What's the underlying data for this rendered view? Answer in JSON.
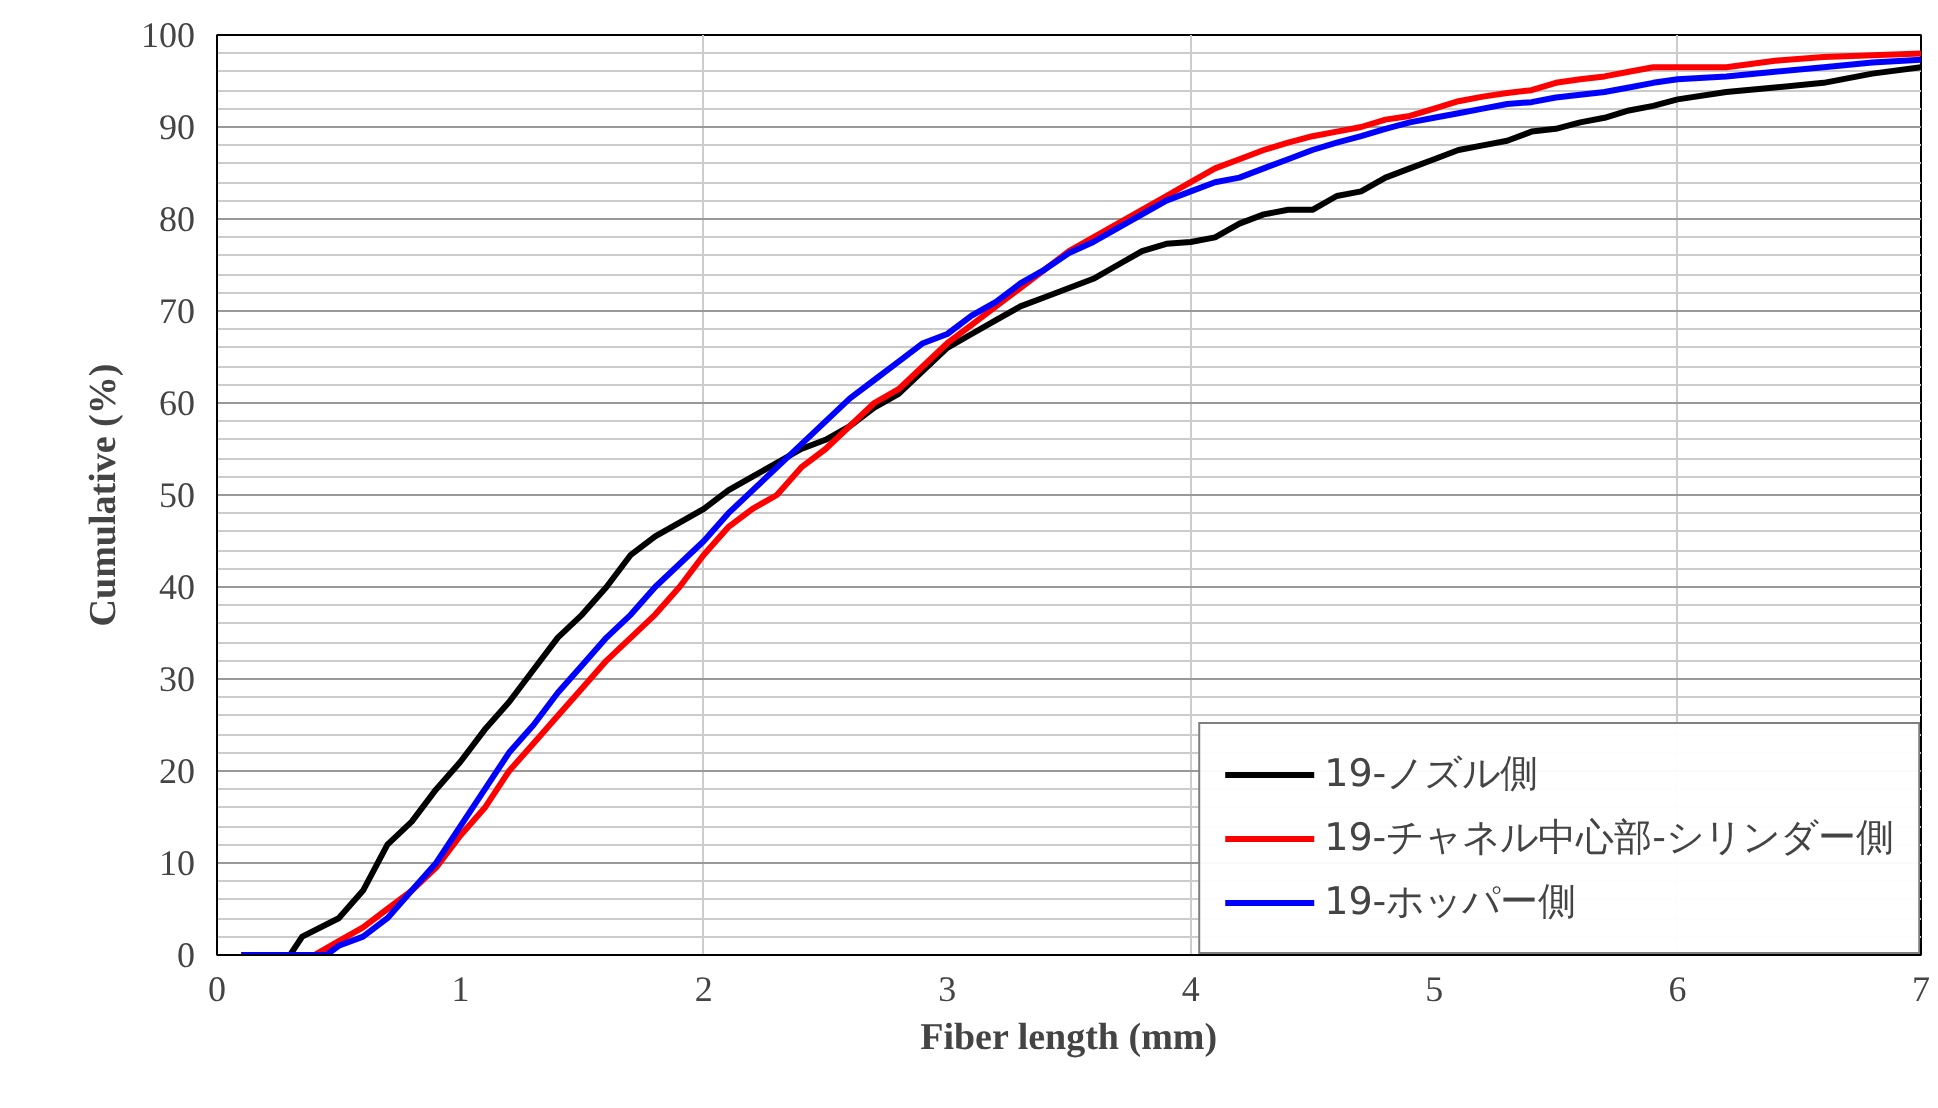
{
  "chart_data": {
    "type": "line",
    "xlabel": "Fiber length (mm)",
    "ylabel": "Cumulative (%)",
    "xlim": [
      0,
      7
    ],
    "ylim": [
      0,
      100
    ],
    "xticks": [
      0,
      1,
      2,
      3,
      4,
      5,
      6,
      7
    ],
    "yticks": [
      0,
      10,
      20,
      30,
      40,
      50,
      60,
      70,
      80,
      90,
      100
    ],
    "grid": true,
    "legend": "bottom right",
    "line_style": "solid",
    "series": [
      {
        "name": "19-ノズル側",
        "color": "#000000",
        "x": [
          0.1,
          0.3,
          0.35,
          0.5,
          0.6,
          0.7,
          0.8,
          0.9,
          1.0,
          1.1,
          1.2,
          1.3,
          1.4,
          1.5,
          1.6,
          1.7,
          1.8,
          1.9,
          2.0,
          2.1,
          2.2,
          2.3,
          2.4,
          2.5,
          2.6,
          2.7,
          2.8,
          2.9,
          3.0,
          3.1,
          3.2,
          3.3,
          3.4,
          3.5,
          3.6,
          3.7,
          3.8,
          3.9,
          4.0,
          4.1,
          4.2,
          4.3,
          4.4,
          4.5,
          4.6,
          4.7,
          4.8,
          4.9,
          5.0,
          5.1,
          5.2,
          5.3,
          5.4,
          5.5,
          5.6,
          5.7,
          5.8,
          5.9,
          6.0,
          6.2,
          6.4,
          6.6,
          6.8,
          7.0
        ],
        "values": [
          0,
          0,
          2,
          4,
          7,
          12,
          14.5,
          18,
          21,
          24.5,
          27.5,
          31,
          34.5,
          37,
          40,
          43.5,
          45.5,
          47,
          48.5,
          50.5,
          52,
          53.5,
          55,
          56,
          57.5,
          59.5,
          61,
          63.5,
          66,
          67.5,
          69,
          70.5,
          71.5,
          72.5,
          73.5,
          75,
          76.5,
          77.3,
          77.5,
          78,
          79.5,
          80.5,
          81,
          81,
          82.5,
          83,
          84.5,
          85.5,
          86.5,
          87.5,
          88,
          88.5,
          89.5,
          89.8,
          90.5,
          91,
          91.8,
          92.3,
          93,
          93.8,
          94.3,
          94.8,
          95.8,
          96.5
        ]
      },
      {
        "name": "19-チャネル中心部-シリンダー側",
        "color": "#ff0000",
        "x": [
          0.1,
          0.4,
          0.5,
          0.6,
          0.7,
          0.8,
          0.9,
          1.0,
          1.1,
          1.2,
          1.3,
          1.4,
          1.5,
          1.6,
          1.7,
          1.8,
          1.9,
          2.0,
          2.1,
          2.2,
          2.3,
          2.4,
          2.5,
          2.6,
          2.7,
          2.8,
          2.9,
          3.0,
          3.1,
          3.2,
          3.3,
          3.4,
          3.5,
          3.6,
          3.7,
          3.8,
          3.9,
          4.0,
          4.1,
          4.2,
          4.3,
          4.4,
          4.5,
          4.6,
          4.7,
          4.8,
          4.9,
          5.0,
          5.1,
          5.2,
          5.3,
          5.4,
          5.5,
          5.6,
          5.7,
          5.8,
          5.9,
          6.0,
          6.2,
          6.4,
          6.6,
          6.8,
          7.0
        ],
        "values": [
          0,
          0,
          1.5,
          3,
          5,
          7,
          9.5,
          13,
          16,
          20,
          23,
          26,
          29,
          32,
          34.5,
          37,
          40,
          43.5,
          46.5,
          48.5,
          50,
          53,
          55,
          57.5,
          60,
          61.5,
          64,
          66.5,
          68.5,
          70.5,
          72.5,
          74.5,
          76.5,
          78,
          79.5,
          81,
          82.5,
          84,
          85.5,
          86.5,
          87.5,
          88.3,
          89,
          89.5,
          90,
          90.8,
          91.2,
          92,
          92.8,
          93.3,
          93.7,
          94,
          94.8,
          95.2,
          95.5,
          96,
          96.5,
          96.5,
          96.5,
          97.2,
          97.6,
          97.8,
          98
        ]
      },
      {
        "name": "19-ホッパー側",
        "color": "#0000ff",
        "x": [
          0.1,
          0.45,
          0.5,
          0.6,
          0.7,
          0.8,
          0.9,
          1.0,
          1.1,
          1.2,
          1.3,
          1.4,
          1.5,
          1.6,
          1.7,
          1.8,
          1.9,
          2.0,
          2.1,
          2.2,
          2.3,
          2.4,
          2.5,
          2.6,
          2.7,
          2.8,
          2.9,
          3.0,
          3.1,
          3.2,
          3.3,
          3.4,
          3.5,
          3.6,
          3.7,
          3.8,
          3.9,
          4.0,
          4.1,
          4.2,
          4.3,
          4.4,
          4.5,
          4.6,
          4.7,
          4.8,
          4.9,
          5.0,
          5.1,
          5.2,
          5.3,
          5.4,
          5.5,
          5.6,
          5.7,
          5.8,
          5.9,
          6.0,
          6.2,
          6.4,
          6.6,
          6.8,
          7.0
        ],
        "values": [
          0,
          0,
          1,
          2,
          4,
          7,
          10,
          14,
          18,
          22,
          25,
          28.5,
          31.5,
          34.5,
          37,
          40,
          42.5,
          45,
          48,
          50.5,
          53,
          55.5,
          58,
          60.5,
          62.5,
          64.5,
          66.5,
          67.5,
          69.5,
          71,
          73,
          74.5,
          76.3,
          77.5,
          79,
          80.5,
          82,
          83,
          84,
          84.5,
          85.5,
          86.5,
          87.5,
          88.3,
          89,
          89.8,
          90.5,
          91,
          91.5,
          92,
          92.5,
          92.7,
          93.2,
          93.5,
          93.8,
          94.3,
          94.8,
          95.2,
          95.5,
          96,
          96.5,
          97,
          97.3
        ]
      }
    ]
  }
}
